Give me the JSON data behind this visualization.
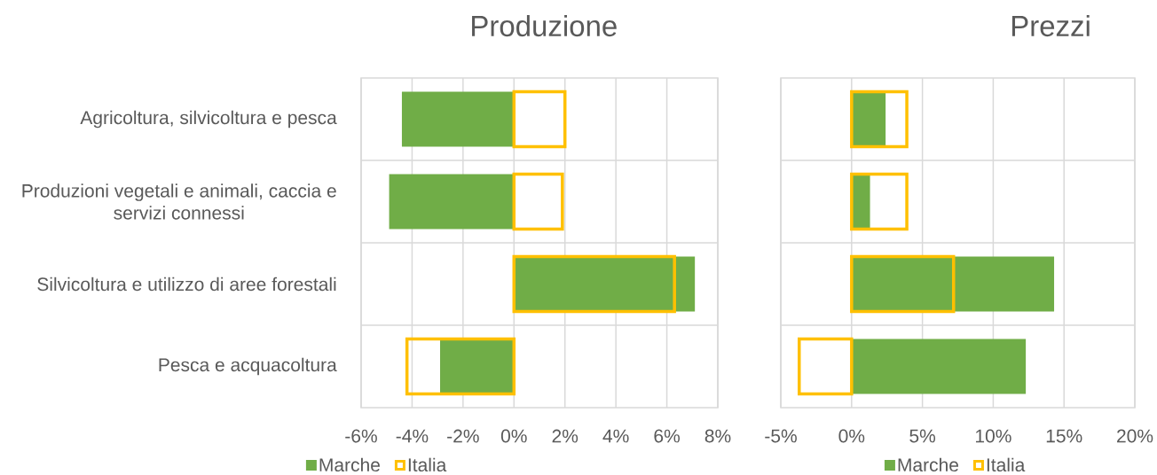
{
  "chart_data": [
    {
      "type": "bar",
      "orientation": "horizontal",
      "title": "Produzione",
      "categories": [
        "Agricoltura, silvicoltura e pesca",
        "Produzioni vegetali e animali, caccia e servizi connessi",
        "Silvicoltura e utilizzo di aree forestali",
        "Pesca e acquacoltura"
      ],
      "series": [
        {
          "name": "Marche",
          "color": "#70ad47",
          "values": [
            -4.4,
            -4.9,
            7.1,
            -2.9
          ]
        },
        {
          "name": "Italia",
          "color": "#ffc000",
          "values": [
            2.0,
            1.9,
            6.3,
            -4.2
          ]
        }
      ],
      "xlim": [
        -6,
        8
      ],
      "xticks": [
        {
          "value": -6,
          "label": "-6%"
        },
        {
          "value": -4,
          "label": "-4%"
        },
        {
          "value": -2,
          "label": "-2%"
        },
        {
          "value": 0,
          "label": "0%"
        },
        {
          "value": 2,
          "label": "2%"
        },
        {
          "value": 4,
          "label": "4%"
        },
        {
          "value": 6,
          "label": "6%"
        },
        {
          "value": 8,
          "label": "8%"
        }
      ],
      "grid": true,
      "legend": "bottom"
    },
    {
      "type": "bar",
      "orientation": "horizontal",
      "title": "Prezzi",
      "categories": [
        null,
        null,
        null,
        null
      ],
      "series": [
        {
          "name": "Marche",
          "color": "#70ad47",
          "values": [
            2.4,
            1.3,
            14.3,
            12.3
          ]
        },
        {
          "name": "Italia",
          "color": "#ffc000",
          "values": [
            3.9,
            3.9,
            7.2,
            -3.7
          ]
        }
      ],
      "xlim": [
        -5,
        20
      ],
      "xticks": [
        {
          "value": -5,
          "label": "-5%"
        },
        {
          "value": 0,
          "label": "0%"
        },
        {
          "value": 5,
          "label": "5%"
        },
        {
          "value": 10,
          "label": "10%"
        },
        {
          "value": 15,
          "label": "15%"
        },
        {
          "value": 20,
          "label": "20%"
        }
      ],
      "grid": true,
      "legend": "bottom",
      "tick_labels": "x"
    }
  ]
}
